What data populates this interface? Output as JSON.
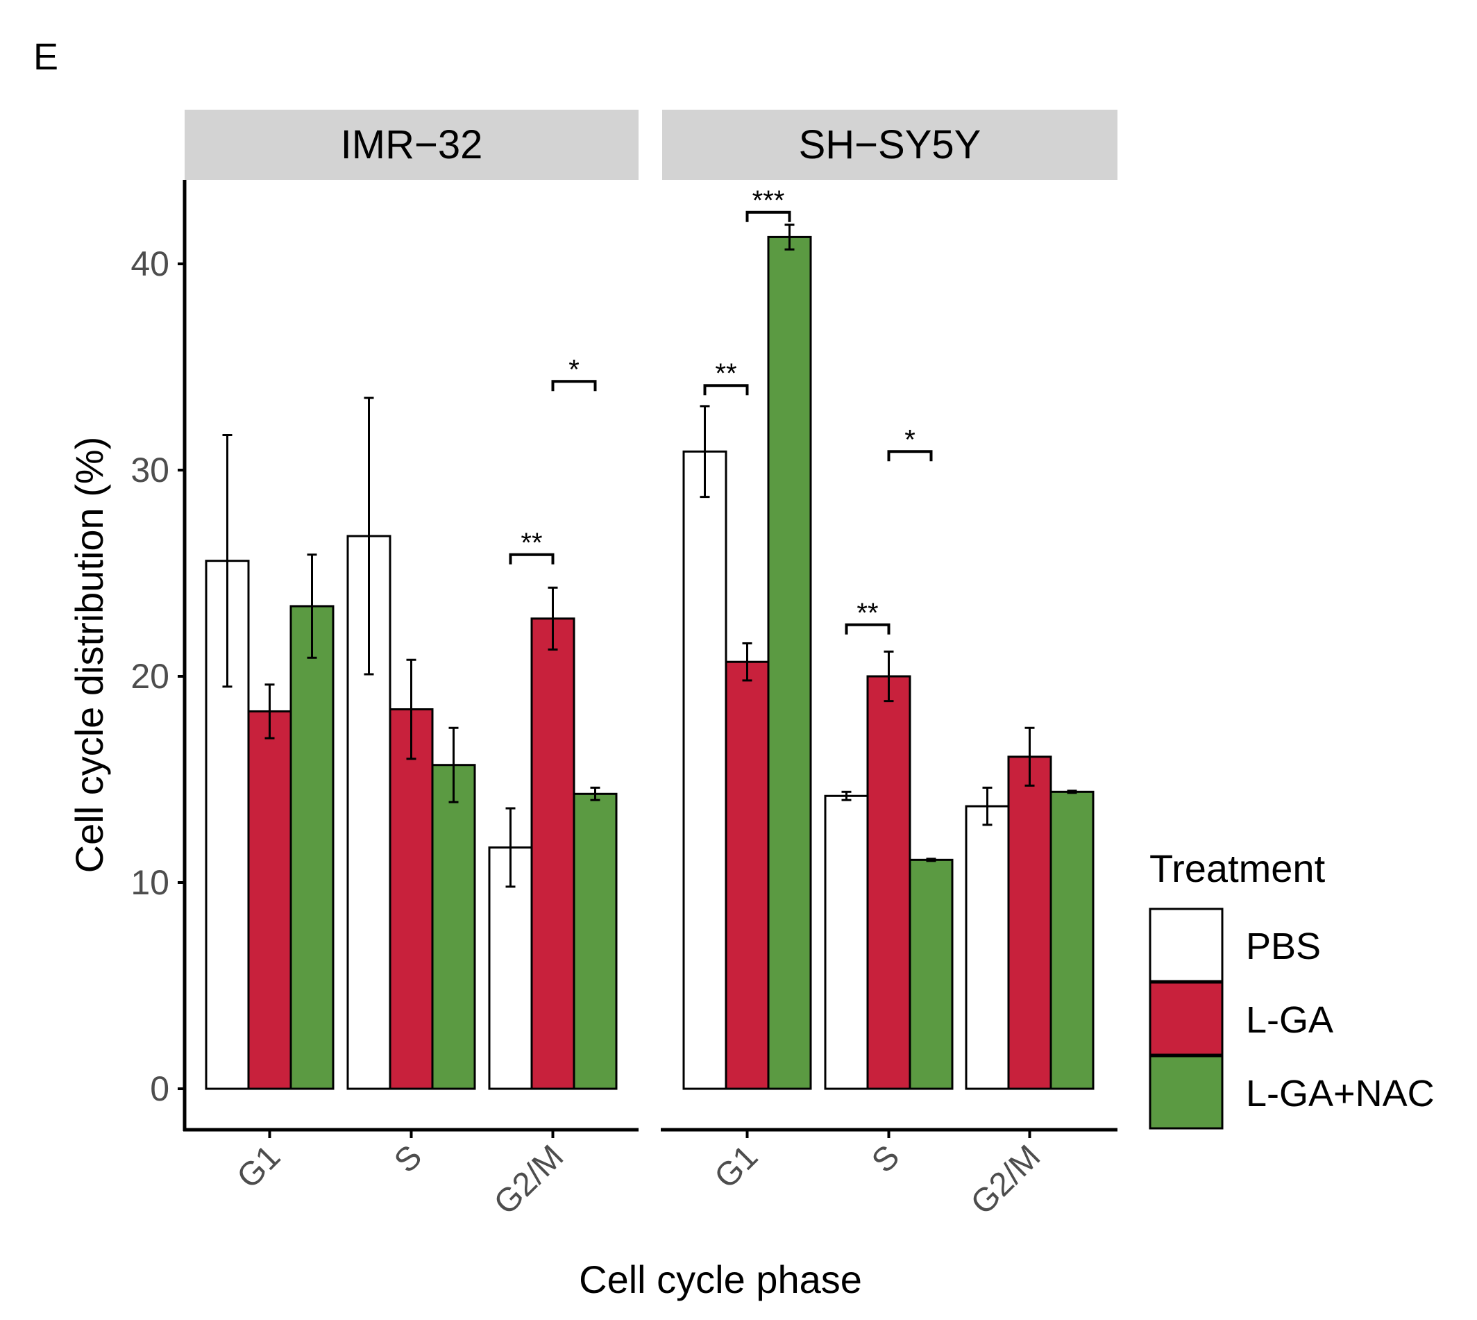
{
  "panel_letter": "E",
  "chart_data": {
    "type": "bar",
    "title": "",
    "xlabel": "Cell cycle phase",
    "ylabel": "Cell cycle distribution (%)",
    "ylim": [
      0,
      43
    ],
    "yticks": [
      0,
      10,
      20,
      30,
      40
    ],
    "categories": [
      "G1",
      "S",
      "G2/M"
    ],
    "legend": {
      "title": "Treatment",
      "position": "right",
      "entries": [
        "PBS",
        "L-GA",
        "L-GA+NAC"
      ]
    },
    "colors": {
      "PBS": "#ffffff",
      "L-GA": "#c8213c",
      "L-GA+NAC": "#5b9a42",
      "strip": "#d3d3d3",
      "axis": "#000000"
    },
    "facets": [
      {
        "name": "IMR−32",
        "series": [
          {
            "name": "PBS",
            "values": [
              25.6,
              26.8,
              11.7
            ],
            "errors": [
              6.1,
              6.7,
              1.9
            ]
          },
          {
            "name": "L-GA",
            "values": [
              18.3,
              18.4,
              22.8
            ],
            "errors": [
              1.3,
              2.4,
              1.5
            ]
          },
          {
            "name": "L-GA+NAC",
            "values": [
              23.4,
              15.7,
              14.3
            ],
            "errors": [
              2.5,
              1.8,
              0.3
            ]
          }
        ],
        "significance": [
          {
            "category": "G2/M",
            "from": "PBS",
            "to": "L-GA",
            "label": "**",
            "y": 25.9
          },
          {
            "category": "G2/M",
            "from": "L-GA",
            "to": "L-GA+NAC",
            "label": "*",
            "y": 34.3
          }
        ]
      },
      {
        "name": "SH−SY5Y",
        "series": [
          {
            "name": "PBS",
            "values": [
              30.9,
              14.2,
              13.7
            ],
            "errors": [
              2.2,
              0.2,
              0.9
            ]
          },
          {
            "name": "L-GA",
            "values": [
              20.7,
              20.0,
              16.1
            ],
            "errors": [
              0.9,
              1.2,
              1.4
            ]
          },
          {
            "name": "L-GA+NAC",
            "values": [
              41.3,
              11.1,
              14.4
            ],
            "errors": [
              0.6,
              0.05,
              0.05
            ]
          }
        ],
        "significance": [
          {
            "category": "G1",
            "from": "PBS",
            "to": "L-GA",
            "label": "**",
            "y": 34.1
          },
          {
            "category": "G1",
            "from": "L-GA",
            "to": "L-GA+NAC",
            "label": "***",
            "y": 42.5
          },
          {
            "category": "S",
            "from": "PBS",
            "to": "L-GA",
            "label": "**",
            "y": 22.5
          },
          {
            "category": "S",
            "from": "L-GA",
            "to": "L-GA+NAC",
            "label": "*",
            "y": 30.9
          }
        ]
      }
    ]
  }
}
